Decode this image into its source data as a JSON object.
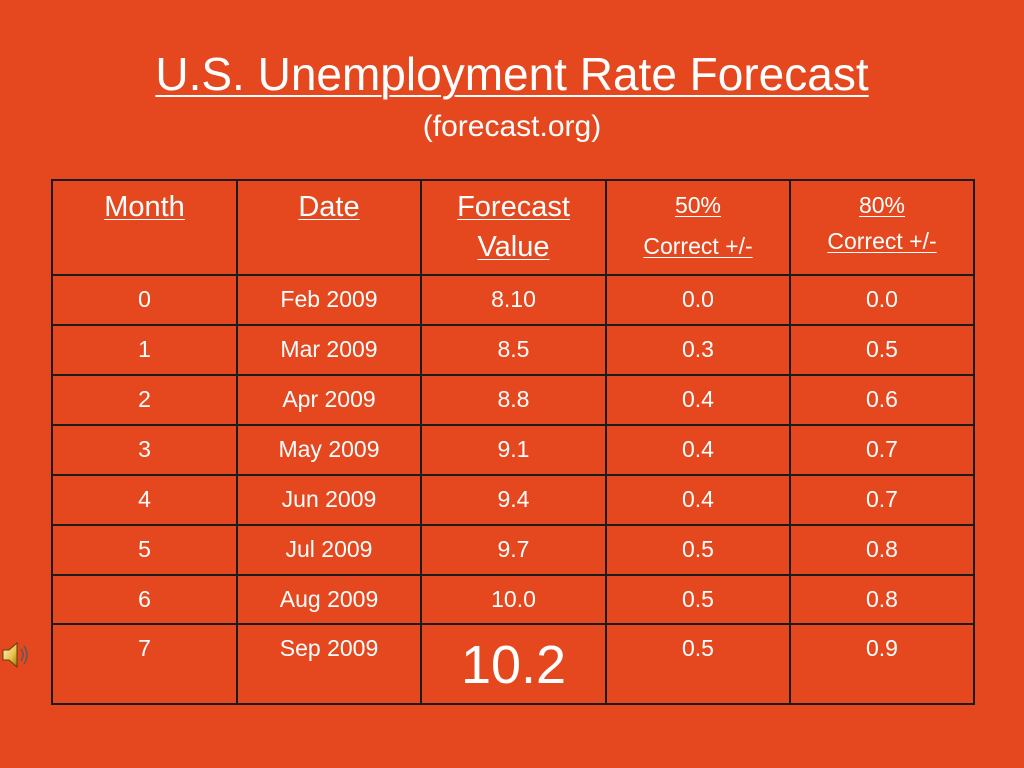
{
  "slide": {
    "title": "U.S. Unemployment Rate Forecast",
    "subtitle": "(forecast.org)"
  },
  "table": {
    "headers": {
      "month": "Month",
      "date": "Date",
      "forecast_line1": "Forecast",
      "forecast_line2": "Value",
      "p50_line1": "50%",
      "p50_line2": "Correct +/-",
      "p80_line1": "80%",
      "p80_line2": "Correct +/-"
    },
    "rows": [
      {
        "month": "0",
        "date": "Feb 2009",
        "value": "8.10",
        "p50": "0.0",
        "p80": "0.0"
      },
      {
        "month": "1",
        "date": "Mar 2009",
        "value": "8.5",
        "p50": "0.3",
        "p80": "0.5"
      },
      {
        "month": "2",
        "date": "Apr 2009",
        "value": "8.8",
        "p50": "0.4",
        "p80": "0.6"
      },
      {
        "month": "3",
        "date": "May 2009",
        "value": "9.1",
        "p50": "0.4",
        "p80": "0.7"
      },
      {
        "month": "4",
        "date": "Jun 2009",
        "value": "9.4",
        "p50": "0.4",
        "p80": "0.7"
      },
      {
        "month": "5",
        "date": "Jul 2009",
        "value": "9.7",
        "p50": "0.5",
        "p80": "0.8"
      },
      {
        "month": "6",
        "date": "Aug 2009",
        "value": "10.0",
        "p50": "0.5",
        "p80": "0.8"
      },
      {
        "month": "7",
        "date": "Sep 2009",
        "value": "10.2",
        "p50": "0.5",
        "p80": "0.9"
      }
    ]
  },
  "icons": {
    "audio": "speaker-icon"
  },
  "colors": {
    "background": "#e5481f",
    "text": "#ffffff",
    "border": "#1c1c1c"
  }
}
